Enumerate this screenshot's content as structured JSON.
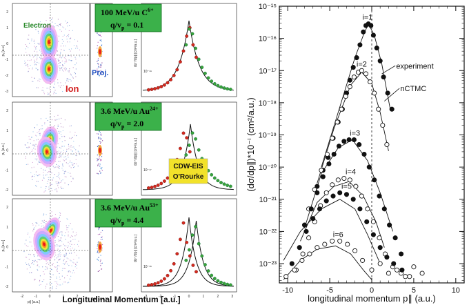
{
  "left_figure": {
    "rows": [
      {
        "title": "100 MeV/u C",
        "title_sup": "6+",
        "ratio_text": "q/v",
        "ratio_sub": "p",
        "ratio_value": "= 0.1",
        "map_labels": {
          "electron": "Electron",
          "ion": "Ion",
          "proj": "Proj."
        },
        "dist_ylabel": "dσ⁺/dp∥ [cm²/a.u.]",
        "dist_ticks": [
          "10⁻¹⁸",
          "10⁻¹⁹"
        ],
        "px_label": "pᵧ [a.u.]",
        "ytick_labels": [
          "2",
          "1",
          "0",
          "-1",
          "-2",
          "-3"
        ]
      },
      {
        "title": "3.6 MeV/u  Au",
        "title_sup": "24+",
        "ratio_text": "q/v",
        "ratio_sub": "p",
        "ratio_value": "= 2.0",
        "theory_labels": [
          "CDW-EIS",
          "O'Rourke"
        ],
        "dist_ylabel": "dσ⁺/dp∥ [cm²/a.u.]",
        "dist_ticks": [
          "10⁻¹⁶",
          "10⁻¹⁷"
        ],
        "px_label": "pᵧ [a.u.]",
        "ytick_labels": [
          "2",
          "1",
          "0",
          "-1",
          "-2"
        ]
      },
      {
        "title": "3.6 MeV/u  Au",
        "title_sup": "53+",
        "ratio_text": "q/v",
        "ratio_sub": "p",
        "ratio_value": "= 4.4",
        "dist_ylabel": "dσ⁺/dp∥ [cm²/a.u.]",
        "dist_ticks": [
          "10⁻¹⁵",
          "10⁻¹⁶"
        ],
        "px_label": "pᵧ [a.u.]",
        "ytick_labels": [
          "2",
          "1",
          "0",
          "-1",
          "-2"
        ],
        "bottom_xticks": [
          "-2",
          "-1",
          "0",
          "1",
          "2"
        ],
        "bottom_xlabel": "p∥ [a.u.]",
        "proj_xlabel": "Δp∥ [a.u.]",
        "dist_xticks": [
          "-3",
          "-2",
          "-1",
          "0",
          "1",
          "2",
          "3"
        ]
      }
    ],
    "xlabel": "Longitudinal Momentum [a.u.]"
  },
  "chart_data": {
    "type": "scatter",
    "xlabel": "longitudinal  momentum  p∥ (a.u.)",
    "ylabel": "(dσ/dp∥)*10⁻ⁱ (cm²/a.u.)",
    "xlim": [
      -11,
      11
    ],
    "ylim_log10": [
      -23.6,
      -15
    ],
    "yscale": "log",
    "xticks": [
      "-10",
      "-5",
      "0",
      "5",
      "10"
    ],
    "yticks": [
      "10⁻¹⁵",
      "10⁻¹⁶",
      "10⁻¹⁷",
      "10⁻¹⁸",
      "10⁻¹⁹",
      "10⁻²⁰",
      "10⁻²¹",
      "10⁻²²",
      "10⁻²³"
    ],
    "annotations": [
      "experiment",
      "nCTMC"
    ],
    "series": [
      {
        "label": "i=1",
        "filled": true,
        "centroid": -0.5,
        "points": [
          [
            -6.5,
            -20.6
          ],
          [
            -5.8,
            -20.1
          ],
          [
            -5.2,
            -19.7
          ],
          [
            -4.6,
            -19.1
          ],
          [
            -4.0,
            -18.6
          ],
          [
            -3.5,
            -18.2
          ],
          [
            -3.0,
            -17.7
          ],
          [
            -2.6,
            -17.3
          ],
          [
            -2.2,
            -16.9
          ],
          [
            -1.8,
            -16.6
          ],
          [
            -1.4,
            -16.2
          ],
          [
            -1.0,
            -15.8
          ],
          [
            -0.7,
            -15.6
          ],
          [
            -0.4,
            -15.55
          ],
          [
            -0.1,
            -15.6
          ],
          [
            0.2,
            -15.9
          ],
          [
            0.6,
            -16.3
          ],
          [
            1.0,
            -16.7
          ],
          [
            1.4,
            -17.2
          ],
          [
            1.9,
            -17.7
          ],
          [
            2.4,
            -18.2
          ]
        ],
        "curve": [
          [
            -6.0,
            -20.0
          ],
          [
            -4.0,
            -18.3
          ],
          [
            -2.0,
            -16.6
          ],
          [
            -1.0,
            -15.9
          ],
          [
            -0.4,
            -15.55
          ],
          [
            0.3,
            -15.9
          ],
          [
            1.2,
            -16.8
          ],
          [
            2.2,
            -18.2
          ]
        ]
      },
      {
        "label": "i=2",
        "filled": false,
        "centroid": -1.2,
        "points": [
          [
            -7.5,
            -21.3
          ],
          [
            -6.8,
            -20.7
          ],
          [
            -6.0,
            -20.1
          ],
          [
            -5.3,
            -19.6
          ],
          [
            -4.7,
            -19.1
          ],
          [
            -4.1,
            -18.6
          ],
          [
            -3.6,
            -18.2
          ],
          [
            -3.1,
            -17.8
          ],
          [
            -2.6,
            -17.5
          ],
          [
            -2.1,
            -17.2
          ],
          [
            -1.6,
            -17.05
          ],
          [
            -1.2,
            -17.0
          ],
          [
            -0.7,
            -17.1
          ],
          [
            -0.2,
            -17.35
          ],
          [
            0.3,
            -17.7
          ],
          [
            0.8,
            -18.2
          ],
          [
            1.3,
            -18.7
          ],
          [
            1.8,
            -19.3
          ]
        ],
        "curve": [
          [
            -6.5,
            -20.5
          ],
          [
            -4.5,
            -18.8
          ],
          [
            -2.5,
            -17.45
          ],
          [
            -1.2,
            -17.05
          ],
          [
            0.0,
            -17.4
          ],
          [
            1.0,
            -18.3
          ],
          [
            2.0,
            -19.5
          ]
        ]
      },
      {
        "label": "i=3",
        "filled": true,
        "centroid": -2.0,
        "points": [
          [
            -8.0,
            -21.8
          ],
          [
            -7.2,
            -21.3
          ],
          [
            -6.5,
            -20.8
          ],
          [
            -5.8,
            -20.3
          ],
          [
            -5.1,
            -19.9
          ],
          [
            -4.5,
            -19.6
          ],
          [
            -3.9,
            -19.35
          ],
          [
            -3.3,
            -19.2
          ],
          [
            -2.7,
            -19.15
          ],
          [
            -2.1,
            -19.15
          ],
          [
            -1.5,
            -19.3
          ],
          [
            -0.9,
            -19.6
          ],
          [
            -0.3,
            -20.0
          ],
          [
            0.3,
            -20.4
          ],
          [
            0.9,
            -20.9
          ],
          [
            1.5,
            -21.3
          ],
          [
            2.1,
            -21.8
          ],
          [
            2.8,
            -22.2
          ],
          [
            3.5,
            -22.7
          ]
        ],
        "curve": [
          [
            -8.0,
            -21.9
          ],
          [
            -6.0,
            -20.2
          ],
          [
            -4.0,
            -19.4
          ],
          [
            -2.3,
            -19.15
          ],
          [
            -0.5,
            -19.8
          ],
          [
            1.0,
            -20.8
          ],
          [
            2.5,
            -22.0
          ]
        ]
      },
      {
        "label": "i=4",
        "filled": false,
        "centroid": -2.5,
        "points": [
          [
            -9.0,
            -23.2
          ],
          [
            -8.2,
            -22.7
          ],
          [
            -7.5,
            -22.2
          ],
          [
            -6.8,
            -21.7
          ],
          [
            -6.1,
            -21.2
          ],
          [
            -5.4,
            -20.8
          ],
          [
            -4.7,
            -20.55
          ],
          [
            -4.0,
            -20.4
          ],
          [
            -3.3,
            -20.35
          ],
          [
            -2.6,
            -20.4
          ],
          [
            -1.9,
            -20.6
          ],
          [
            -1.2,
            -20.9
          ],
          [
            -0.5,
            -21.3
          ],
          [
            0.2,
            -21.7
          ],
          [
            0.9,
            -22.2
          ],
          [
            1.6,
            -22.7
          ],
          [
            2.5,
            -23.1
          ],
          [
            3.5,
            -23.3
          ],
          [
            4.5,
            -23.4
          ]
        ],
        "curve": [
          [
            -8.5,
            -22.3
          ],
          [
            -6.5,
            -21.1
          ],
          [
            -4.5,
            -20.6
          ],
          [
            -2.7,
            -20.45
          ],
          [
            -1.0,
            -20.9
          ],
          [
            0.5,
            -21.7
          ],
          [
            1.5,
            -22.5
          ]
        ]
      },
      {
        "label": "i=5",
        "filled": true,
        "centroid": -3.0,
        "points": [
          [
            -9.5,
            -23.0
          ],
          [
            -8.6,
            -22.5
          ],
          [
            -7.8,
            -22.0
          ],
          [
            -7.0,
            -21.6
          ],
          [
            -6.2,
            -21.3
          ],
          [
            -5.4,
            -21.05
          ],
          [
            -4.6,
            -20.9
          ],
          [
            -3.8,
            -20.8
          ],
          [
            -3.0,
            -20.85
          ],
          [
            -2.2,
            -21.0
          ],
          [
            -1.4,
            -21.3
          ],
          [
            -0.6,
            -21.7
          ],
          [
            0.2,
            -22.1
          ],
          [
            1.0,
            -22.5
          ],
          [
            1.8,
            -22.8
          ],
          [
            2.6,
            -23.0
          ],
          [
            3.6,
            -23.2
          ]
        ],
        "curve": [
          [
            -10.5,
            -22.9
          ],
          [
            -8.5,
            -22.0
          ],
          [
            -6.0,
            -21.3
          ],
          [
            -3.8,
            -21.0
          ],
          [
            -2.0,
            -21.3
          ],
          [
            -0.5,
            -22.1
          ],
          [
            1.0,
            -23.0
          ]
        ]
      },
      {
        "label": "i=6",
        "filled": false,
        "centroid": -4.0,
        "points": [
          [
            -10.2,
            -23.4
          ],
          [
            -9.2,
            -23.2
          ],
          [
            -8.3,
            -22.9
          ],
          [
            -7.4,
            -22.7
          ],
          [
            -6.5,
            -22.5
          ],
          [
            -5.6,
            -22.4
          ],
          [
            -4.7,
            -22.3
          ],
          [
            -3.8,
            -22.3
          ],
          [
            -2.9,
            -22.4
          ],
          [
            -2.0,
            -22.6
          ],
          [
            -1.1,
            -22.9
          ],
          [
            0.0,
            -23.2
          ],
          [
            1.0,
            -23.0
          ],
          [
            2.0,
            -23.3
          ],
          [
            3.0,
            -23.2
          ],
          [
            4.0,
            -23.4
          ],
          [
            5.0,
            -23.1
          ],
          [
            6.0,
            -23.3
          ]
        ],
        "curve": [
          [
            -10.5,
            -23.5
          ],
          [
            -8.5,
            -22.9
          ],
          [
            -6.5,
            -22.55
          ],
          [
            -4.3,
            -22.45
          ],
          [
            -2.5,
            -22.7
          ],
          [
            -1.0,
            -23.2
          ],
          [
            0.0,
            -23.5
          ]
        ]
      }
    ]
  }
}
